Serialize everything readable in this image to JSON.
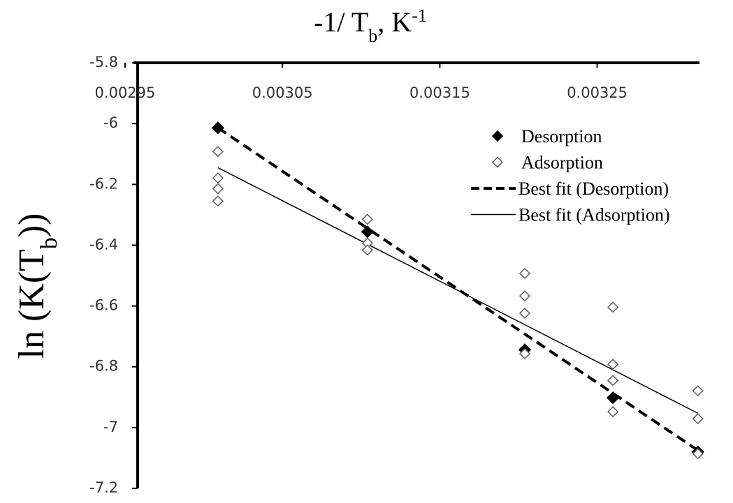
{
  "chart_data": {
    "type": "scatter",
    "x_label": [
      {
        "text": "-1/ T"
      },
      {
        "text": "b",
        "sub": true
      },
      {
        "text": ",  K"
      },
      {
        "text": "-1",
        "sup": true
      }
    ],
    "y_label": [
      {
        "text": "ln (K(T"
      },
      {
        "text": "b",
        "sub": true
      },
      {
        "text": "))"
      }
    ],
    "xlim": [
      0.002958,
      0.003315
    ],
    "xticks": [
      0.00295,
      0.00305,
      0.00315,
      0.00325
    ],
    "ylim": [
      -7.2,
      -5.8
    ],
    "yticks": [
      -5.8,
      -6,
      -6.2,
      -6.4,
      -6.6,
      -6.8,
      -7,
      -7.2
    ],
    "legend": "upper right",
    "series": [
      {
        "name": "Desorption",
        "color": "#000000",
        "marker": "filled",
        "x": [
          0.003009,
          0.003104,
          0.003204,
          0.00326,
          0.003314
        ],
        "values": [
          -6.014,
          -6.356,
          -6.744,
          -6.902,
          -7.08
        ]
      },
      {
        "name": "Adsorption",
        "color": "#000000",
        "marker": "open",
        "x": [
          0.003009,
          0.003009,
          0.003009,
          0.003009,
          0.003104,
          0.003104,
          0.003104,
          0.003204,
          0.003204,
          0.003204,
          0.003204,
          0.00326,
          0.00326,
          0.00326,
          0.00326,
          0.003314,
          0.003314,
          0.003314
        ],
        "values": [
          -6.092,
          -6.179,
          -6.214,
          -6.255,
          -6.315,
          -6.393,
          -6.416,
          -6.493,
          -6.567,
          -6.624,
          -6.757,
          -6.604,
          -6.792,
          -6.845,
          -6.948,
          -6.879,
          -6.971,
          -7.086
        ]
      },
      {
        "name": "Best fit (Desorption)",
        "color": "#000000",
        "line": "dashed",
        "x": [
          0.003009,
          0.003314
        ],
        "values": [
          -6.014,
          -7.075
        ]
      },
      {
        "name": "Best fit (Adsorption)",
        "color": "#000000",
        "line": "solid",
        "x": [
          0.003009,
          0.003314
        ],
        "values": [
          -6.145,
          -6.953
        ]
      }
    ]
  }
}
